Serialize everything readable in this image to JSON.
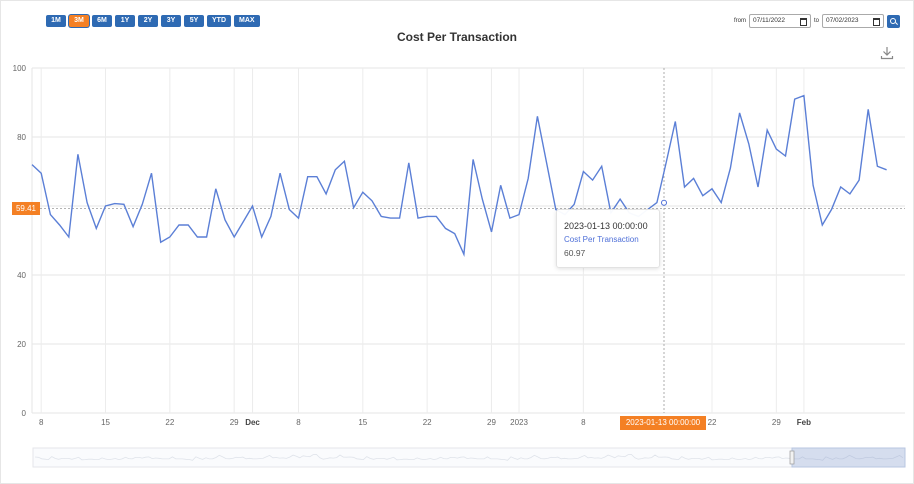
{
  "range_buttons": [
    "1M",
    "3M",
    "6M",
    "1Y",
    "2Y",
    "3Y",
    "5Y",
    "YTD",
    "MAX"
  ],
  "active_range": "3M",
  "date_range": {
    "from_label": "from",
    "from_value": "07/11/2022",
    "to_label": "to",
    "to_value": "07/02/2023"
  },
  "icons": {
    "download": "download-icon",
    "search": "search-icon",
    "calendar": "calendar-icon"
  },
  "colors": {
    "line": "#5b7fd6",
    "accent": "#f48024",
    "button": "#2e6ab3"
  },
  "tooltip": {
    "time": "2023-01-13 00:00:00",
    "series": "Cost Per Transaction",
    "value": "60.97"
  },
  "crosshair": {
    "y_value": "59.41",
    "x_label": "2023-01-13 00:00:00"
  },
  "chart_data": {
    "type": "line",
    "title": "Cost Per Transaction",
    "xlabel": "",
    "ylabel": "",
    "ylim": [
      0,
      100
    ],
    "yticks": [
      0,
      20,
      40,
      60,
      80,
      100
    ],
    "xrange": [
      0,
      95
    ],
    "xticks": [
      {
        "x": 1,
        "label": "8"
      },
      {
        "x": 8,
        "label": "15"
      },
      {
        "x": 15,
        "label": "22"
      },
      {
        "x": 22,
        "label": "29"
      },
      {
        "x": 24,
        "label": "Dec"
      },
      {
        "x": 29,
        "label": "8"
      },
      {
        "x": 36,
        "label": "15"
      },
      {
        "x": 43,
        "label": "22"
      },
      {
        "x": 50,
        "label": "29"
      },
      {
        "x": 53,
        "label": "2023"
      },
      {
        "x": 60,
        "label": "8"
      },
      {
        "x": 74,
        "label": "22"
      },
      {
        "x": 81,
        "label": "29"
      },
      {
        "x": 84,
        "label": "Feb"
      }
    ],
    "grid": true,
    "legend": "none",
    "series": [
      {
        "values": [
          72,
          69.5,
          57.5,
          54.5,
          51,
          75,
          61,
          53.5,
          60,
          60.7,
          60.5,
          54,
          60.5,
          69.5,
          49.5,
          51,
          54.5,
          54.5,
          51,
          51,
          65,
          56,
          51,
          55.5,
          60,
          51,
          57,
          69.5,
          59,
          56.5,
          68.5,
          68.5,
          63.5,
          70.5,
          73,
          59.5,
          64,
          61.5,
          57,
          56.5,
          56.5,
          72.5,
          56.5,
          57,
          57,
          53.5,
          52,
          46,
          73.5,
          62,
          52.5,
          66,
          56.5,
          57.5,
          68,
          86,
          72.5,
          59,
          57.5,
          60.5,
          70,
          67.5,
          71.5,
          58,
          62,
          58,
          57,
          59,
          61,
          72.5,
          84.5,
          65.5,
          68,
          63,
          65,
          61,
          71,
          87,
          78,
          65.5,
          82,
          76.5,
          74.5,
          91,
          92,
          66,
          54.5,
          59,
          65.5,
          63.5,
          67.5,
          88,
          71.5,
          70.5
        ]
      }
    ]
  }
}
